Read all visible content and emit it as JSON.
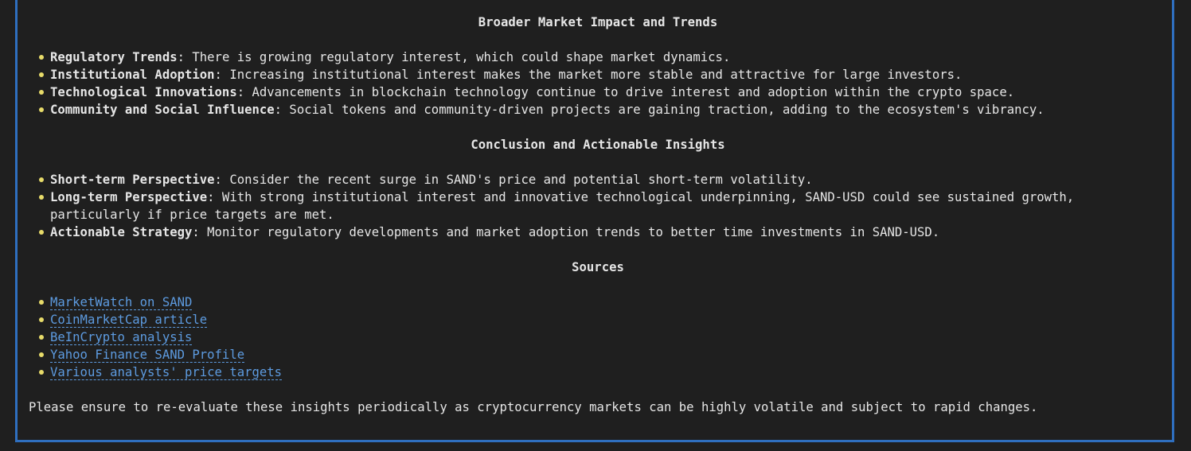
{
  "broader": {
    "heading": "Broader Market Impact and Trends",
    "items": [
      {
        "term": "Regulatory Trends",
        "text": ": There is growing regulatory interest, which could shape market dynamics."
      },
      {
        "term": "Institutional Adoption",
        "text": ": Increasing institutional interest makes the market more stable and attractive for large investors."
      },
      {
        "term": "Technological Innovations",
        "text": ": Advancements in blockchain technology continue to drive interest and adoption within the crypto space."
      },
      {
        "term": "Community and Social Influence",
        "text": ": Social tokens and community-driven projects are gaining traction, adding to the ecosystem's vibrancy."
      }
    ]
  },
  "conclusion": {
    "heading": "Conclusion and Actionable Insights",
    "items": [
      {
        "term": "Short-term Perspective",
        "text": ": Consider the recent surge in SAND's price and potential short-term volatility."
      },
      {
        "term": "Long-term Perspective",
        "text": ": With strong institutional interest and innovative technological underpinning, SAND-USD could see sustained growth, particularly if price targets are met."
      },
      {
        "term": "Actionable Strategy",
        "text": ": Monitor regulatory developments and market adoption trends to better time investments in SAND-USD."
      }
    ]
  },
  "sources": {
    "heading": "Sources",
    "links": [
      "MarketWatch on SAND",
      "CoinMarketCap article",
      "BeInCrypto analysis",
      "Yahoo Finance SAND Profile",
      "Various analysts' price targets"
    ]
  },
  "footer_note": "Please ensure to re-evaluate these insights periodically as cryptocurrency markets can be highly volatile and subject to rapid changes."
}
